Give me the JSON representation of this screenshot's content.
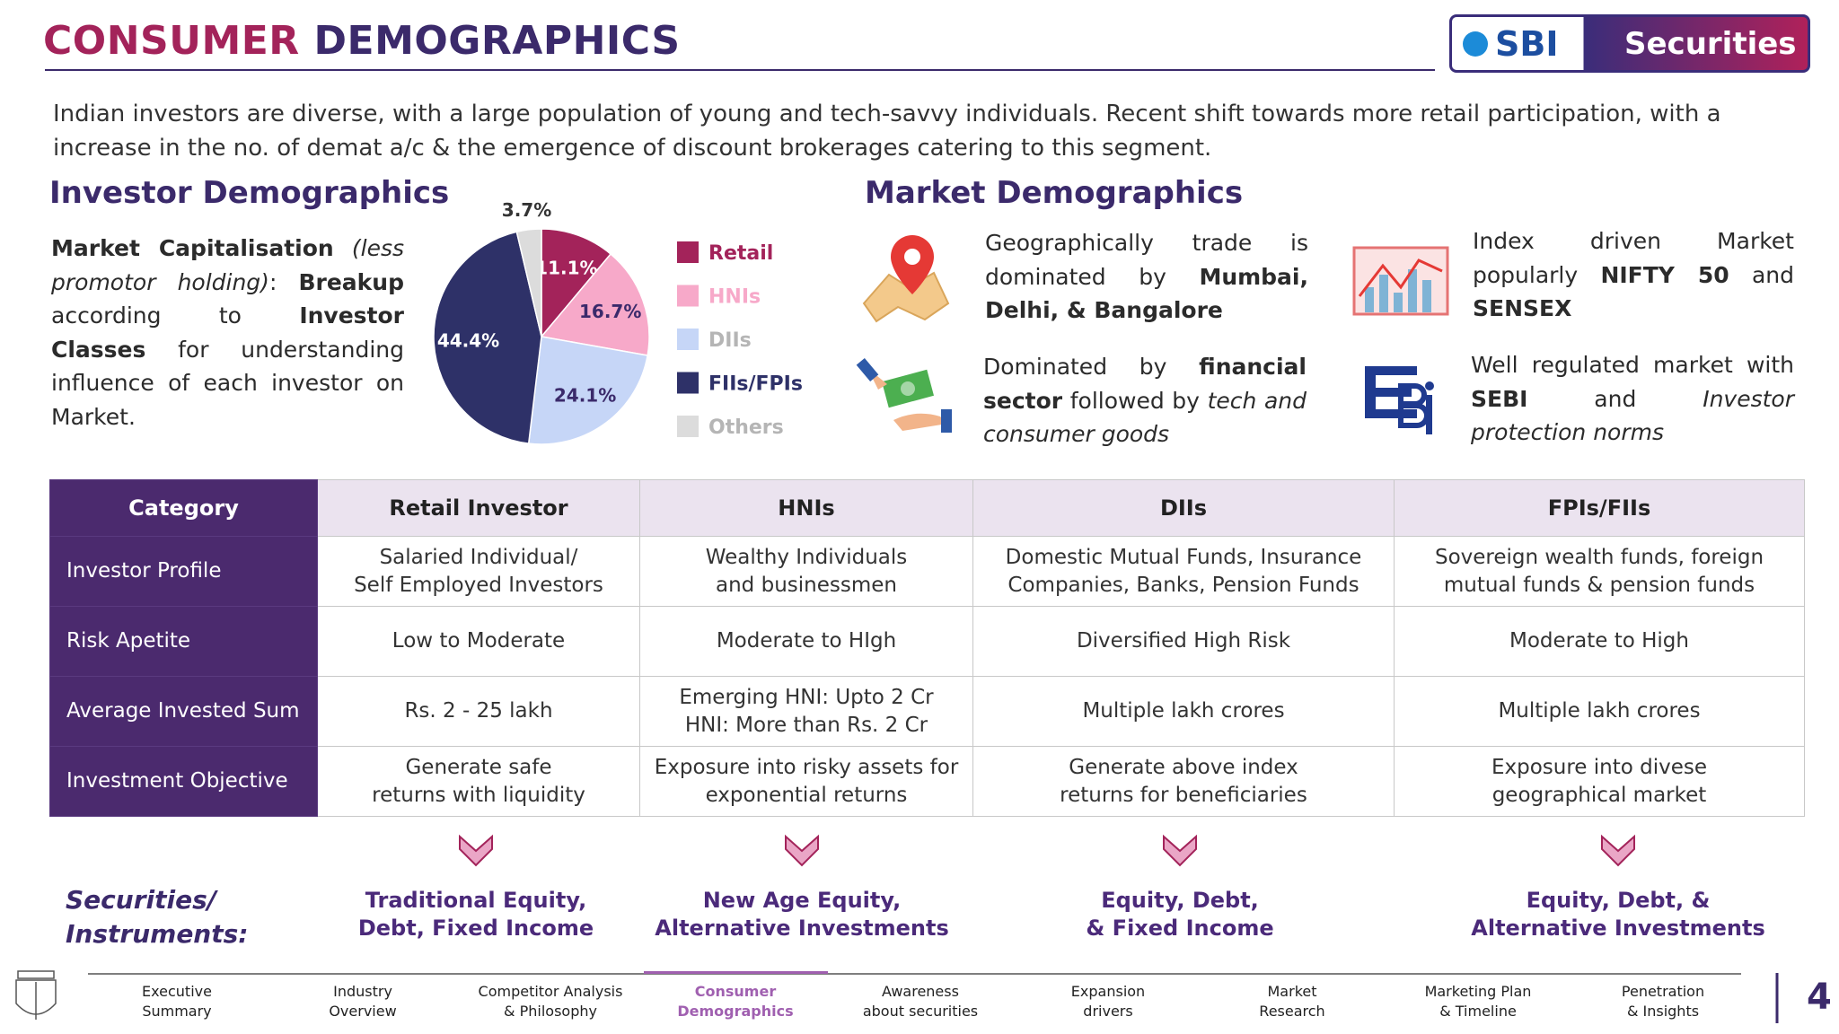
{
  "header": {
    "title_parts": [
      "CONSUMER",
      "DEMOGRAPHICS"
    ],
    "logo": [
      "SBI",
      "Securities"
    ]
  },
  "intro": "Indian investors are diverse, with a large population of young and tech-savvy individuals. Recent shift towards more retail participation, with a increase in the no. of demat a/c & the emergence of discount brokerages catering to this segment.",
  "investor": {
    "heading": "Investor Demographics",
    "description": [
      "Market Capitalisation",
      " (less promotor holding)",
      ": ",
      "Breakup",
      " according to ",
      "Investor Classes",
      " for understanding influence of each investor on Market."
    ]
  },
  "chart_data": {
    "type": "pie",
    "categories": [
      "Retail",
      "HNIs",
      "DIIs",
      "FIIs/FPIs",
      "Others"
    ],
    "values": [
      11.1,
      16.7,
      24.1,
      44.4,
      3.7
    ],
    "value_labels": [
      "11.1%",
      "16.7%",
      "24.1%",
      "44.4%",
      "3.7%"
    ],
    "colors": [
      "#a3235a",
      "#f7a9c9",
      "#c6d6f7",
      "#2e3168",
      "#dcdcdc"
    ]
  },
  "market": {
    "heading": "Market Demographics",
    "items": [
      [
        "Geographically trade is dominated by ",
        "Mumbai, Delhi, & Bangalore"
      ],
      [
        "Index driven Market popularly ",
        "NIFTY 50",
        " and ",
        "SENSEX"
      ],
      [
        "Dominated by ",
        "financial sector",
        " followed by ",
        "tech and consumer goods"
      ],
      [
        "Well regulated market with ",
        "SEBI",
        " and ",
        "Investor protection norms"
      ]
    ]
  },
  "table": {
    "headers": [
      "Category",
      "Retail Investor",
      "HNIs",
      "DIIs",
      "FPIs/FIIs"
    ],
    "rows": [
      [
        [
          "Investor Profile"
        ],
        [
          "Salaried Individual/",
          "Self Employed Investors"
        ],
        [
          "Wealthy Individuals",
          "and businessmen"
        ],
        [
          "Domestic Mutual Funds, Insurance",
          "Companies, Banks, Pension Funds"
        ],
        [
          "Sovereign wealth funds, foreign",
          "mutual funds & pension funds"
        ]
      ],
      [
        [
          "Risk Apetite"
        ],
        [
          "Low to Moderate"
        ],
        [
          "Moderate to HIgh"
        ],
        [
          "Diversified High Risk"
        ],
        [
          "Moderate to High"
        ]
      ],
      [
        [
          "Average Invested Sum"
        ],
        [
          "Rs. 2 - 25 lakh"
        ],
        [
          "Emerging HNI: Upto 2 Cr",
          "HNI: More than Rs. 2 Cr"
        ],
        [
          "Multiple lakh crores"
        ],
        [
          "Multiple lakh crores"
        ]
      ],
      [
        [
          "Investment Objective"
        ],
        [
          "Generate safe",
          "returns with liquidity"
        ],
        [
          "Exposure into risky assets for",
          "exponential returns"
        ],
        [
          "Generate above index",
          "returns for beneficiaries"
        ],
        [
          "Exposure into divese",
          "geographical market"
        ]
      ]
    ]
  },
  "instruments": {
    "label": [
      "Securities/",
      "Instruments:"
    ],
    "items": [
      [
        "Traditional Equity,",
        "Debt, Fixed Income"
      ],
      [
        "New Age Equity,",
        "Alternative Investments"
      ],
      [
        "Equity, Debt,",
        "& Fixed Income"
      ],
      [
        "Equity, Debt, &",
        "Alternative Investments"
      ]
    ]
  },
  "nav": {
    "items": [
      [
        "Executive",
        "Summary"
      ],
      [
        "Industry",
        "Overview"
      ],
      [
        "Competitor Analysis",
        "& Philosophy"
      ],
      [
        "Consumer",
        "Demographics"
      ],
      [
        "Awareness",
        "about securities"
      ],
      [
        "Expansion",
        "drivers"
      ],
      [
        "Market",
        "Research"
      ],
      [
        "Marketing Plan",
        "& Timeline"
      ],
      [
        "Penetration",
        "& Insights"
      ]
    ],
    "active": 3
  },
  "page_number": 4
}
